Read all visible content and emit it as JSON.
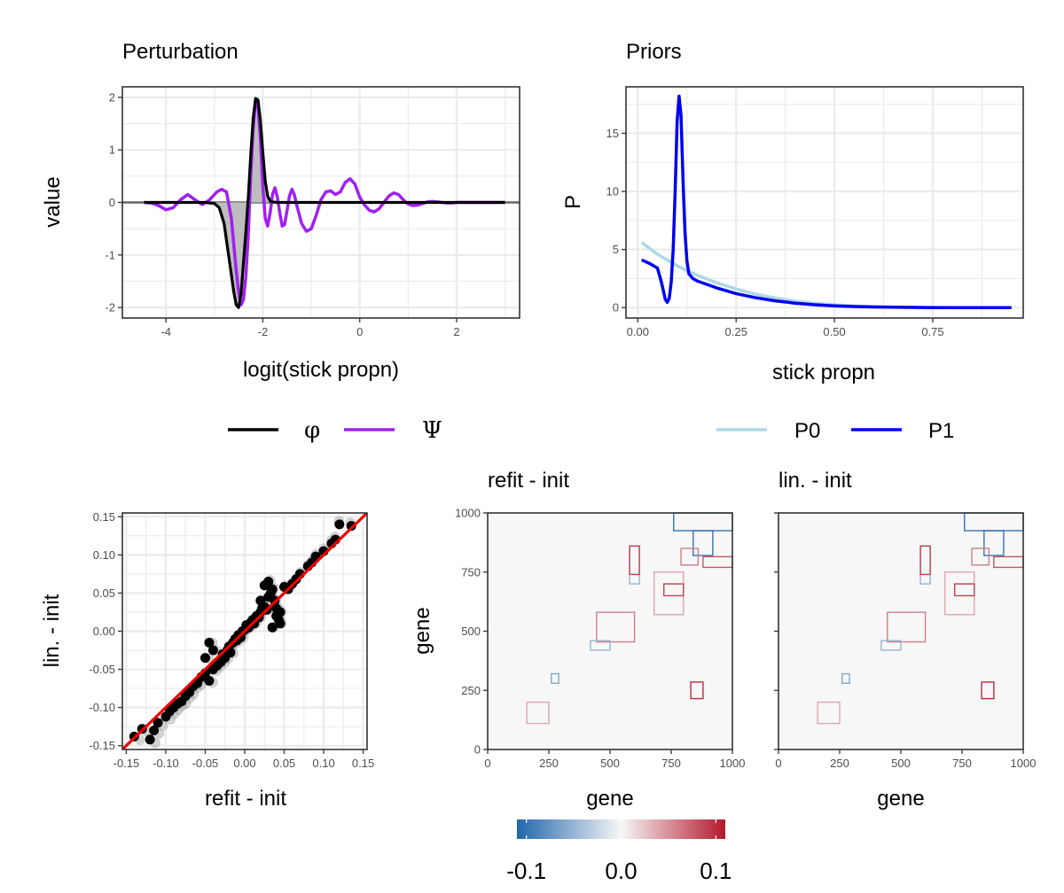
{
  "chart_data": [
    {
      "id": "perturbation",
      "type": "line",
      "title": "Perturbation",
      "xlabel": "logit(stick propn)",
      "ylabel": "value",
      "xlim": [
        -4.9,
        3.3
      ],
      "ylim": [
        -2.2,
        2.2
      ],
      "xticks": [
        -4,
        -2,
        0,
        2
      ],
      "xtick_labels": [
        "-4",
        "-2",
        "0",
        "2"
      ],
      "yticks": [
        -2,
        -1,
        0,
        1,
        2
      ],
      "ytick_labels": [
        "-2",
        "-1",
        "0",
        "1",
        "2"
      ],
      "grid": true,
      "legend": "bottom",
      "legend_glyphs": [
        "φ",
        "Ψ"
      ],
      "series": [
        {
          "color": "#000000",
          "shaded_area": true,
          "x": [
            -4.45,
            -3.2,
            -3.0,
            -2.9,
            -2.8,
            -2.7,
            -2.6,
            -2.55,
            -2.5,
            -2.45,
            -2.4,
            -2.35,
            -2.3,
            -2.25,
            -2.2,
            -2.15,
            -2.1,
            -2.05,
            -2.0,
            -1.95,
            -1.9,
            -1.85,
            -1.8,
            -1.7,
            -1.6,
            3.0
          ],
          "y": [
            0,
            0,
            -0.02,
            -0.1,
            -0.4,
            -1.05,
            -1.7,
            -1.95,
            -2.0,
            -1.75,
            -1.15,
            -0.55,
            0.1,
            0.9,
            1.6,
            1.98,
            1.95,
            1.55,
            0.95,
            0.4,
            0.12,
            0.03,
            0.01,
            0,
            0,
            0
          ]
        },
        {
          "color": "#a020f0",
          "x": [
            -4.45,
            -4.3,
            -4.15,
            -4.0,
            -3.85,
            -3.7,
            -3.55,
            -3.4,
            -3.25,
            -3.1,
            -2.95,
            -2.85,
            -2.75,
            -2.65,
            -2.6,
            -2.55,
            -2.5,
            -2.45,
            -2.4,
            -2.35,
            -2.3,
            -2.25,
            -2.2,
            -2.15,
            -2.1,
            -2.05,
            -2.0,
            -1.95,
            -1.9,
            -1.85,
            -1.8,
            -1.75,
            -1.7,
            -1.65,
            -1.6,
            -1.55,
            -1.5,
            -1.45,
            -1.4,
            -1.35,
            -1.3,
            -1.2,
            -1.1,
            -1.0,
            -0.9,
            -0.8,
            -0.7,
            -0.6,
            -0.5,
            -0.4,
            -0.3,
            -0.2,
            -0.1,
            0.0,
            0.1,
            0.2,
            0.3,
            0.4,
            0.5,
            0.6,
            0.7,
            0.8,
            0.9,
            1.0,
            1.1,
            1.2,
            1.3,
            1.4,
            1.5,
            1.6,
            1.7,
            1.8,
            1.9,
            2.0,
            2.2,
            2.4,
            2.6,
            2.8,
            3.0
          ],
          "y": [
            0,
            -0.01,
            -0.06,
            -0.14,
            -0.1,
            0.05,
            0.15,
            0.05,
            -0.04,
            0.05,
            0.2,
            0.25,
            0.2,
            -0.3,
            -0.8,
            -1.3,
            -1.7,
            -1.95,
            -1.85,
            -1.4,
            -0.6,
            0.5,
            1.4,
            1.95,
            1.85,
            1.2,
            0.3,
            -0.3,
            -0.45,
            -0.2,
            0.15,
            0.28,
            0.1,
            -0.2,
            -0.45,
            -0.42,
            -0.15,
            0.12,
            0.25,
            0.15,
            -0.05,
            -0.4,
            -0.55,
            -0.5,
            -0.25,
            0.05,
            0.2,
            0.22,
            0.15,
            0.2,
            0.38,
            0.45,
            0.35,
            0.1,
            -0.05,
            -0.15,
            -0.18,
            -0.12,
            0.0,
            0.12,
            0.18,
            0.15,
            0.05,
            -0.03,
            -0.06,
            -0.05,
            -0.02,
            0.01,
            0.02,
            0.01,
            0.0,
            -0.01,
            -0.01,
            0.0,
            0.0,
            0.0,
            0.0,
            0.0,
            0.0
          ]
        }
      ]
    },
    {
      "id": "priors",
      "type": "line",
      "title": "Priors",
      "xlabel": "stick propn",
      "ylabel": "P",
      "xlim": [
        -0.03,
        0.98
      ],
      "ylim": [
        -0.9,
        19
      ],
      "xticks": [
        0.0,
        0.25,
        0.5,
        0.75
      ],
      "xtick_labels": [
        "0.00",
        "0.25",
        "0.50",
        "0.75"
      ],
      "yticks": [
        0,
        5,
        10,
        15
      ],
      "ytick_labels": [
        "0",
        "5",
        "10",
        "15"
      ],
      "grid": true,
      "legend": "bottom",
      "series": [
        {
          "name": "P0",
          "color": "#add8e6",
          "x": [
            0.01,
            0.03,
            0.05,
            0.07,
            0.1,
            0.13,
            0.15,
            0.2,
            0.25,
            0.3,
            0.35,
            0.4,
            0.45,
            0.5,
            0.55,
            0.6,
            0.65,
            0.7,
            0.75,
            0.8,
            0.85,
            0.9,
            0.95
          ],
          "y": [
            5.6,
            5.1,
            4.6,
            4.2,
            3.6,
            3.1,
            2.8,
            2.15,
            1.6,
            1.15,
            0.82,
            0.56,
            0.37,
            0.23,
            0.14,
            0.08,
            0.04,
            0.02,
            0.01,
            0.0,
            0.0,
            0.0,
            0.0
          ]
        },
        {
          "name": "P1",
          "color": "#0000ee",
          "x": [
            0.01,
            0.03,
            0.05,
            0.06,
            0.07,
            0.075,
            0.08,
            0.085,
            0.09,
            0.095,
            0.1,
            0.105,
            0.11,
            0.115,
            0.12,
            0.125,
            0.13,
            0.14,
            0.15,
            0.2,
            0.25,
            0.3,
            0.35,
            0.4,
            0.45,
            0.5,
            0.55,
            0.6,
            0.65,
            0.7,
            0.75,
            0.8,
            0.85,
            0.9,
            0.95
          ],
          "y": [
            4.1,
            3.8,
            3.4,
            2.2,
            0.7,
            0.45,
            0.8,
            2.2,
            5.0,
            10.0,
            16.0,
            18.2,
            16.5,
            11.0,
            6.5,
            4.0,
            2.9,
            2.5,
            2.3,
            1.7,
            1.2,
            0.85,
            0.58,
            0.38,
            0.24,
            0.15,
            0.09,
            0.05,
            0.03,
            0.01,
            0.0,
            0.0,
            0.0,
            0.0,
            0.0
          ]
        }
      ]
    },
    {
      "id": "scatter",
      "type": "scatter",
      "xlabel": "refit - init",
      "ylabel": "lin. - init",
      "xlim": [
        -0.155,
        0.155
      ],
      "ylim": [
        -0.155,
        0.155
      ],
      "xticks": [
        -0.15,
        -0.1,
        -0.05,
        0.0,
        0.05,
        0.1,
        0.15
      ],
      "xtick_labels": [
        "-0.15",
        "-0.10",
        "-0.05",
        "0.00",
        "0.05",
        "0.10",
        "0.15"
      ],
      "yticks": [
        -0.15,
        -0.1,
        -0.05,
        0.0,
        0.05,
        0.1,
        0.15
      ],
      "ytick_labels": [
        "-0.15",
        "-0.10",
        "-0.05",
        "0.00",
        "0.05",
        "0.10",
        "0.15"
      ],
      "grid": true,
      "reference_line": {
        "slope": 1,
        "intercept": 0,
        "color": "#ee0000"
      },
      "points_x": [
        -0.14,
        -0.13,
        -0.12,
        -0.115,
        -0.11,
        -0.1,
        -0.095,
        -0.09,
        -0.085,
        -0.08,
        -0.075,
        -0.07,
        -0.065,
        -0.06,
        -0.055,
        -0.05,
        -0.045,
        -0.04,
        -0.035,
        -0.03,
        -0.028,
        -0.025,
        -0.022,
        -0.02,
        -0.018,
        -0.015,
        -0.012,
        -0.01,
        -0.008,
        -0.005,
        -0.003,
        0.0,
        0.002,
        0.005,
        0.008,
        0.01,
        0.012,
        0.015,
        0.018,
        0.02,
        0.022,
        0.025,
        0.028,
        0.03,
        0.033,
        0.035,
        0.038,
        0.04,
        0.043,
        0.045,
        0.05,
        0.055,
        0.06,
        0.065,
        0.07,
        0.08,
        0.085,
        0.09,
        0.1,
        0.11,
        0.115,
        0.12,
        0.135,
        -0.045,
        -0.04,
        -0.05,
        0.025,
        0.03,
        0.02,
        0.045,
        0.035,
        0.04
      ],
      "points_y": [
        -0.138,
        -0.128,
        -0.142,
        -0.13,
        -0.12,
        -0.112,
        -0.105,
        -0.1,
        -0.095,
        -0.092,
        -0.085,
        -0.08,
        -0.072,
        -0.068,
        -0.06,
        -0.055,
        -0.065,
        -0.05,
        -0.045,
        -0.04,
        -0.03,
        -0.035,
        -0.025,
        -0.02,
        -0.028,
        -0.015,
        -0.01,
        -0.012,
        -0.005,
        -0.008,
        0.0,
        0.002,
        0.008,
        0.005,
        0.012,
        0.015,
        0.01,
        0.02,
        0.018,
        0.025,
        0.03,
        0.032,
        0.028,
        0.045,
        0.05,
        0.055,
        0.04,
        0.02,
        0.015,
        0.025,
        0.058,
        0.055,
        0.062,
        0.068,
        0.075,
        0.085,
        0.09,
        0.098,
        0.105,
        0.115,
        0.12,
        0.14,
        0.138,
        -0.015,
        -0.025,
        -0.035,
        0.06,
        0.065,
        0.04,
        0.01,
        0.005,
        0.03
      ],
      "point_color": "#000000"
    },
    {
      "id": "heatmap-refit",
      "type": "heatmap",
      "title": "refit - init",
      "xlabel": "gene",
      "ylabel": "gene",
      "xlim": [
        0,
        1000
      ],
      "ylim": [
        0,
        1000
      ],
      "xticks": [
        0,
        250,
        500,
        750,
        1000
      ],
      "xtick_labels": [
        "0",
        "250",
        "500",
        "750",
        "1000"
      ],
      "yticks": [
        0,
        250,
        500,
        750,
        1000
      ],
      "ytick_labels": [
        "0",
        "250",
        "500",
        "750",
        "1000"
      ],
      "background_value": 0.0,
      "cells": [
        {
          "x0": 760,
          "x1": 1000,
          "y0": 925,
          "y1": 1000,
          "v": -0.1
        },
        {
          "x0": 840,
          "x1": 920,
          "y0": 820,
          "y1": 925,
          "v": -0.1
        },
        {
          "x0": 880,
          "x1": 1000,
          "y0": 770,
          "y1": 815,
          "v": 0.08
        },
        {
          "x0": 790,
          "x1": 860,
          "y0": 780,
          "y1": 850,
          "v": 0.06
        },
        {
          "x0": 680,
          "x1": 800,
          "y0": 570,
          "y1": 750,
          "v": 0.04
        },
        {
          "x0": 445,
          "x1": 600,
          "y0": 455,
          "y1": 580,
          "v": 0.06
        },
        {
          "x0": 580,
          "x1": 620,
          "y0": 700,
          "y1": 860,
          "v": -0.05
        },
        {
          "x0": 580,
          "x1": 620,
          "y0": 740,
          "y1": 860,
          "v": 0.09
        },
        {
          "x0": 260,
          "x1": 290,
          "y0": 280,
          "y1": 320,
          "v": -0.06
        },
        {
          "x0": 160,
          "x1": 250,
          "y0": 110,
          "y1": 200,
          "v": 0.04
        },
        {
          "x0": 830,
          "x1": 880,
          "y0": 215,
          "y1": 285,
          "v": 0.1
        },
        {
          "x0": 720,
          "x1": 800,
          "y0": 650,
          "y1": 700,
          "v": 0.09
        },
        {
          "x0": 420,
          "x1": 500,
          "y0": 420,
          "y1": 460,
          "v": -0.05
        }
      ]
    },
    {
      "id": "heatmap-lin",
      "type": "heatmap",
      "title": "lin. - init",
      "xlabel": "gene",
      "xlim": [
        0,
        1000
      ],
      "ylim": [
        0,
        1000
      ],
      "xticks": [
        0,
        250,
        500,
        750,
        1000
      ],
      "xtick_labels": [
        "0",
        "250",
        "500",
        "750",
        "1000"
      ],
      "yticks": [
        0,
        250,
        500,
        750,
        1000
      ],
      "background_value": 0.0,
      "cells": [
        {
          "x0": 760,
          "x1": 1000,
          "y0": 925,
          "y1": 1000,
          "v": -0.1
        },
        {
          "x0": 840,
          "x1": 920,
          "y0": 820,
          "y1": 925,
          "v": -0.1
        },
        {
          "x0": 880,
          "x1": 1000,
          "y0": 770,
          "y1": 815,
          "v": 0.08
        },
        {
          "x0": 790,
          "x1": 860,
          "y0": 780,
          "y1": 850,
          "v": 0.06
        },
        {
          "x0": 680,
          "x1": 800,
          "y0": 570,
          "y1": 750,
          "v": 0.04
        },
        {
          "x0": 445,
          "x1": 600,
          "y0": 455,
          "y1": 580,
          "v": 0.06
        },
        {
          "x0": 580,
          "x1": 620,
          "y0": 700,
          "y1": 860,
          "v": -0.05
        },
        {
          "x0": 580,
          "x1": 620,
          "y0": 740,
          "y1": 860,
          "v": 0.09
        },
        {
          "x0": 260,
          "x1": 290,
          "y0": 280,
          "y1": 320,
          "v": -0.06
        },
        {
          "x0": 160,
          "x1": 250,
          "y0": 110,
          "y1": 200,
          "v": 0.04
        },
        {
          "x0": 830,
          "x1": 880,
          "y0": 215,
          "y1": 285,
          "v": 0.1
        },
        {
          "x0": 720,
          "x1": 800,
          "y0": 650,
          "y1": 700,
          "v": 0.09
        },
        {
          "x0": 420,
          "x1": 500,
          "y0": 420,
          "y1": 460,
          "v": -0.05
        }
      ]
    }
  ],
  "colorbar": {
    "low_color": "#2166ac",
    "mid_color": "#f7f7f7",
    "high_color": "#b2182b",
    "range": [
      -0.11,
      0.11
    ],
    "tick_values": [
      -0.1,
      0.0,
      0.1
    ],
    "tick_labels": [
      "-0.1",
      "0.0",
      "0.1"
    ]
  }
}
